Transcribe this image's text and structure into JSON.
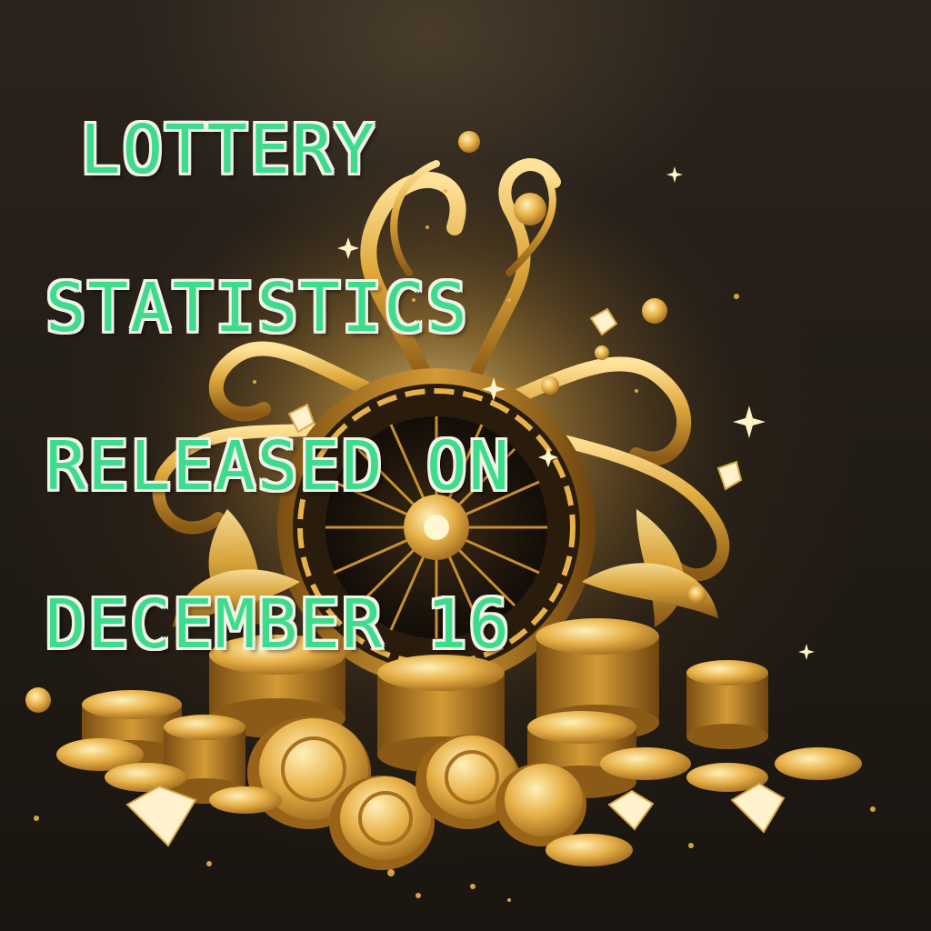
{
  "headline": {
    "line1": "LOTTERY",
    "line2": "STATISTICS",
    "line3": "RELEASED ON",
    "line4": "DECEMBER 16"
  },
  "colors": {
    "headline_fill": "#3ddc8c",
    "headline_outline": "#f2f2e8",
    "background": "#221c16",
    "gold": "#d9a63a"
  },
  "icons": [
    "roulette-wheel-icon",
    "gold-coin-icon",
    "diamond-icon",
    "sparkle-icon"
  ]
}
